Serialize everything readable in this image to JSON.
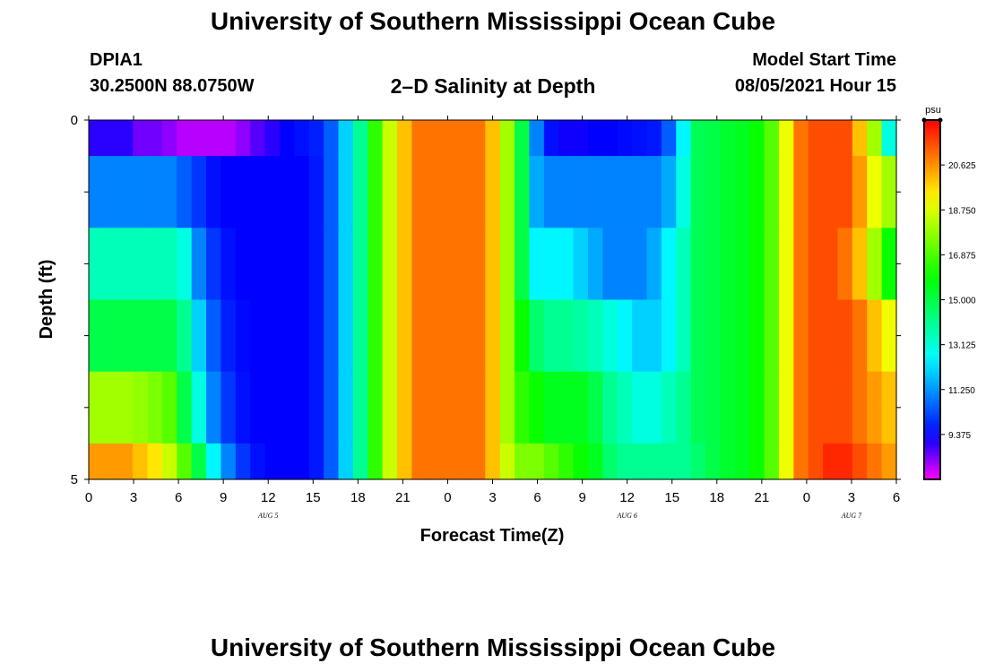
{
  "page": {
    "title": "University of Southern Mississippi Ocean Cube",
    "footer_title": "University of Southern Mississippi Ocean Cube",
    "station": "DPIA1",
    "coordinates": "30.2500N  88.0750W",
    "model_start_label": "Model Start Time",
    "model_start_value": "08/05/2021 Hour 15"
  },
  "chart_data": {
    "type": "heatmap",
    "title": "2–D Salinity at Depth",
    "xlabel": "Forecast Time(Z)",
    "ylabel": "Depth (ft)",
    "x_tick_labels": [
      "0",
      "3",
      "6",
      "9",
      "12",
      "15",
      "18",
      "21",
      "0",
      "3",
      "6",
      "9",
      "12",
      "15",
      "18",
      "21",
      "0",
      "3",
      "6"
    ],
    "x_range_hours": [
      0,
      54
    ],
    "date_labels": [
      {
        "hour": 12,
        "text": "AUG 5"
      },
      {
        "hour": 36,
        "text": "AUG 6"
      },
      {
        "hour": 51,
        "text": "AUG 7"
      }
    ],
    "y_tick_labels": [
      "0",
      "5"
    ],
    "ylim": [
      0,
      5
    ],
    "colorbar": {
      "unit": "psu",
      "min": 7.5,
      "max": 22.5,
      "tick_values": [
        9.375,
        11.25,
        13.125,
        15.0,
        16.875,
        18.75,
        20.625
      ],
      "tick_labels": [
        "9.375",
        "11.250",
        "13.125",
        "15.000",
        "16.875",
        "18.750",
        "20.625"
      ]
    },
    "layers": [
      {
        "depth_range": [
          0.0,
          0.5
        ],
        "values": [
          9.0,
          9.0,
          9.0,
          8.5,
          8.5,
          8.3,
          8.0,
          8.0,
          8.0,
          8.0,
          8.3,
          8.7,
          9.0,
          9.3,
          9.5,
          9.7,
          10.5,
          12.0,
          14.0,
          16.5,
          18.5,
          20.0,
          21.0,
          21.0,
          21.0,
          21.0,
          21.0,
          20.0,
          18.0,
          15.0,
          11.0,
          9.5,
          9.2,
          9.2,
          9.3,
          9.3,
          9.4,
          9.5,
          9.6,
          10.5,
          12.5,
          14.8,
          15.0,
          15.3,
          15.5,
          16.0,
          17.0,
          19.0,
          21.0,
          21.5,
          21.5,
          21.5,
          20.0,
          18.0,
          13.0
        ]
      },
      {
        "depth_range": [
          0.5,
          1.5
        ],
        "values": [
          11.0,
          11.0,
          11.0,
          11.0,
          11.0,
          11.0,
          10.5,
          10.0,
          9.5,
          9.3,
          9.3,
          9.3,
          9.3,
          9.3,
          9.3,
          9.6,
          10.5,
          12.0,
          14.0,
          16.5,
          18.5,
          20.0,
          21.0,
          21.0,
          21.0,
          21.0,
          21.0,
          20.0,
          18.0,
          15.0,
          11.5,
          11.0,
          11.0,
          11.0,
          11.0,
          11.0,
          11.0,
          11.0,
          11.0,
          11.5,
          13.0,
          14.8,
          15.0,
          15.3,
          15.5,
          16.0,
          17.0,
          19.0,
          21.0,
          21.5,
          21.5,
          21.5,
          20.5,
          19.0,
          18.0
        ]
      },
      {
        "depth_range": [
          1.5,
          2.5
        ],
        "values": [
          13.5,
          13.5,
          13.5,
          13.5,
          13.5,
          13.5,
          13.0,
          11.0,
          10.0,
          9.5,
          9.3,
          9.3,
          9.3,
          9.3,
          9.3,
          9.6,
          10.5,
          12.0,
          14.0,
          16.5,
          18.5,
          20.0,
          21.0,
          21.0,
          21.0,
          21.0,
          21.0,
          20.0,
          18.0,
          15.0,
          12.5,
          12.5,
          12.5,
          12.0,
          11.5,
          11.0,
          11.0,
          11.0,
          11.5,
          12.5,
          13.5,
          14.8,
          15.0,
          15.3,
          15.5,
          16.0,
          17.0,
          19.0,
          21.0,
          21.5,
          21.5,
          21.0,
          20.0,
          18.0,
          16.0
        ]
      },
      {
        "depth_range": [
          2.5,
          3.5
        ],
        "values": [
          15.0,
          15.0,
          15.0,
          15.0,
          15.0,
          15.0,
          14.0,
          12.0,
          10.5,
          9.7,
          9.4,
          9.3,
          9.3,
          9.3,
          9.3,
          9.6,
          10.5,
          12.0,
          14.0,
          16.5,
          18.5,
          20.0,
          21.0,
          21.0,
          21.0,
          21.0,
          21.0,
          20.0,
          18.0,
          16.0,
          14.5,
          14.0,
          14.0,
          13.8,
          13.5,
          13.0,
          12.5,
          12.0,
          12.0,
          12.5,
          13.5,
          14.8,
          15.0,
          15.3,
          15.5,
          16.0,
          17.0,
          19.0,
          21.0,
          21.5,
          21.5,
          21.5,
          21.0,
          20.0,
          19.0
        ]
      },
      {
        "depth_range": [
          3.5,
          4.5
        ],
        "values": [
          18.0,
          18.0,
          18.0,
          17.8,
          17.5,
          17.0,
          15.0,
          13.0,
          11.0,
          10.0,
          9.5,
          9.3,
          9.3,
          9.3,
          9.3,
          9.6,
          10.5,
          12.0,
          14.0,
          16.5,
          18.5,
          20.0,
          21.0,
          21.0,
          21.0,
          21.0,
          21.0,
          20.0,
          18.0,
          16.5,
          16.0,
          15.5,
          15.5,
          15.5,
          15.0,
          14.0,
          13.5,
          13.0,
          13.0,
          13.5,
          14.0,
          14.8,
          15.0,
          15.3,
          15.5,
          16.0,
          17.0,
          19.0,
          21.0,
          21.5,
          21.5,
          21.5,
          21.0,
          20.5,
          20.0
        ]
      },
      {
        "depth_range": [
          4.5,
          5.0
        ],
        "values": [
          20.5,
          20.5,
          20.5,
          20.0,
          19.5,
          18.5,
          17.0,
          15.0,
          12.5,
          11.0,
          10.0,
          9.5,
          9.3,
          9.3,
          9.3,
          9.6,
          10.5,
          12.0,
          14.0,
          16.5,
          18.5,
          20.0,
          21.0,
          21.0,
          21.0,
          21.0,
          21.0,
          20.0,
          18.5,
          17.5,
          17.5,
          17.0,
          16.5,
          16.0,
          15.5,
          14.5,
          14.0,
          14.0,
          14.0,
          14.0,
          14.0,
          14.5,
          15.0,
          15.3,
          15.5,
          16.0,
          17.0,
          19.0,
          21.0,
          21.5,
          22.0,
          22.0,
          21.5,
          21.0,
          20.5
        ]
      }
    ]
  }
}
